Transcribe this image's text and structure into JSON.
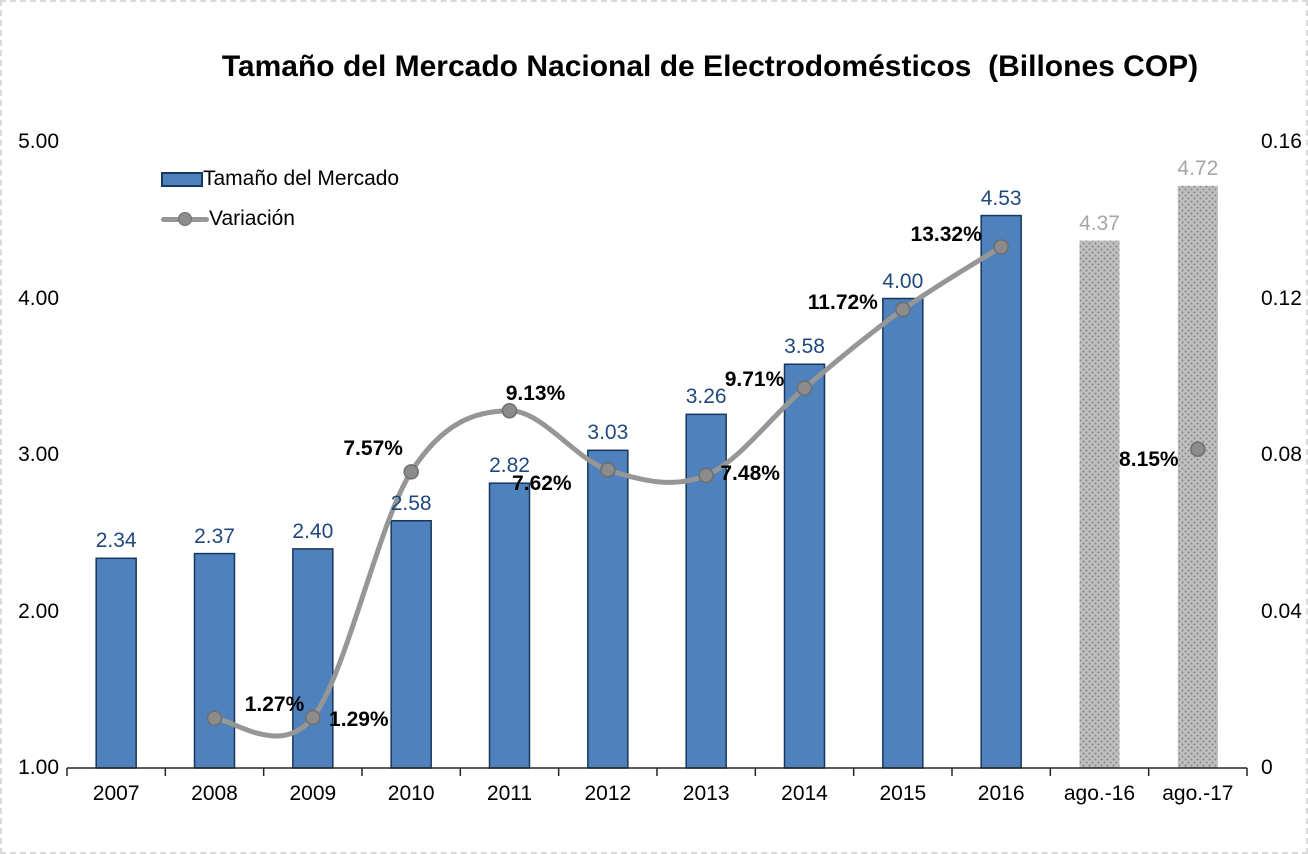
{
  "chart_data": {
    "type": "combo-bar-line",
    "title": "Tamaño del Mercado Nacional de Electrodomésticos  (Billones COP)",
    "categories": [
      "2007",
      "2008",
      "2009",
      "2010",
      "2011",
      "2012",
      "2013",
      "2014",
      "2015",
      "2016",
      "ago.-16",
      "ago.-17"
    ],
    "series": [
      {
        "name": "Tamaño del Mercado",
        "type": "bar",
        "axis": "left",
        "values": [
          2.34,
          2.37,
          2.4,
          2.58,
          2.82,
          3.03,
          3.26,
          3.58,
          4.0,
          4.53,
          4.37,
          4.72
        ],
        "labels": [
          "2.34",
          "2.37",
          "2.40",
          "2.58",
          "2.82",
          "3.03",
          "3.26",
          "3.58",
          "4.00",
          "4.53",
          "4.37",
          "4.72"
        ],
        "bar_styles": [
          "blue",
          "blue",
          "blue",
          "blue",
          "blue",
          "blue",
          "blue",
          "blue",
          "blue",
          "blue",
          "gray-pattern",
          "gray-pattern"
        ]
      },
      {
        "name": "Variación",
        "type": "line",
        "axis": "right",
        "values": [
          null,
          0.0127,
          0.0129,
          0.0757,
          0.0913,
          0.0762,
          0.0748,
          0.0971,
          0.1172,
          0.1332,
          null,
          0.0815
        ],
        "labels": [
          null,
          "1.27%",
          "1.29%",
          "7.57%",
          "9.13%",
          "7.62%",
          "7.48%",
          "9.71%",
          "11.72%",
          "13.32%",
          null,
          "8.15%"
        ],
        "connected": [
          false,
          true,
          true,
          true,
          true,
          true,
          true,
          true,
          true,
          true,
          false,
          false
        ],
        "smooth": true
      }
    ],
    "left_axis": {
      "min": 1.0,
      "max": 5.0,
      "tick_labels": [
        "5.00",
        "4.00",
        "3.00",
        "2.00",
        "1.00"
      ],
      "tick_values": [
        5.0,
        4.0,
        3.0,
        2.0,
        1.0
      ]
    },
    "right_axis": {
      "min": 0,
      "max": 0.16,
      "tick_labels": [
        "0.16",
        "0.12",
        "0.08",
        "0.04",
        "0"
      ],
      "tick_values": [
        0.16,
        0.12,
        0.08,
        0.04,
        0
      ]
    },
    "legend": [
      {
        "label": "Tamaño del Mercado",
        "swatch": "bar"
      },
      {
        "label": "Variación",
        "swatch": "line-marker"
      }
    ],
    "grid": "off",
    "legend_position": "top-left-inside",
    "colors": {
      "bar_fill": "#4F81BD",
      "bar_border": "#17375D",
      "gray_bar_fill": "#BFBFBF",
      "gray_bar_dot": "#8C8C8C",
      "line": "#969696",
      "marker_fill": "#8C8C8C",
      "marker_border": "#6E6E6E",
      "bar_label_blue": "#1F497D",
      "bar_label_gray": "#A6A6A6",
      "pct_label": "#000000",
      "axis_line": "#262626"
    }
  }
}
